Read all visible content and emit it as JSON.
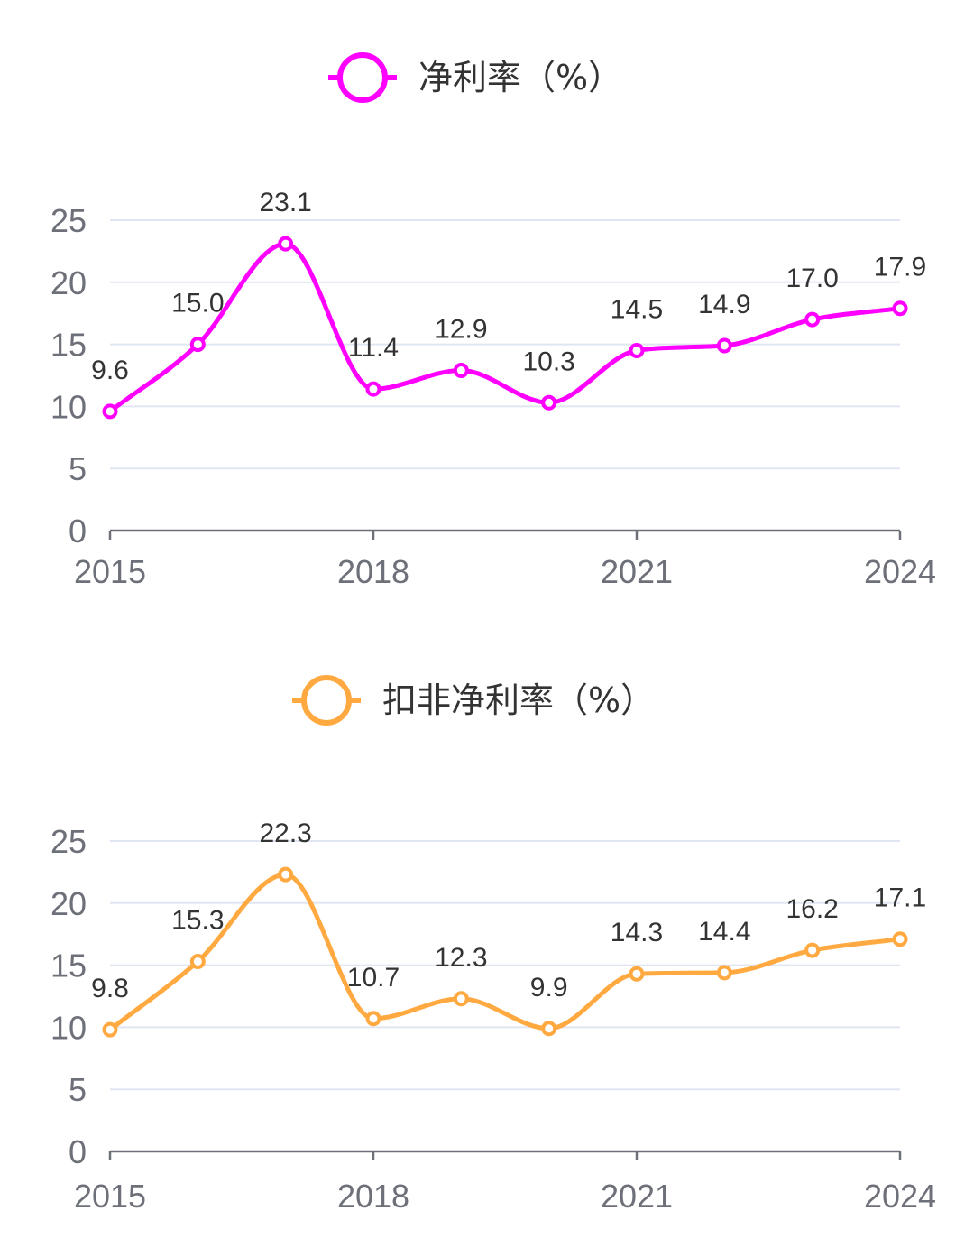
{
  "chart_data": [
    {
      "type": "line",
      "legend": "净利率（%）",
      "color": "#ff00ff",
      "x": [
        "2015",
        "2016",
        "2017",
        "2018",
        "2019",
        "2020",
        "2021",
        "2022",
        "2023",
        "2024"
      ],
      "values": [
        9.6,
        15.0,
        23.1,
        11.4,
        12.9,
        10.3,
        14.5,
        14.9,
        17.0,
        17.9
      ],
      "labels": [
        "9.6",
        "15.0",
        "23.1",
        "11.4",
        "12.9",
        "10.3",
        "14.5",
        "14.9",
        "17.0",
        "17.9"
      ],
      "x_tick_labels": [
        "2015",
        "2018",
        "2021",
        "2024"
      ],
      "y_ticks": [
        0,
        5,
        10,
        15,
        20,
        25
      ],
      "ylim": [
        0,
        25
      ],
      "grid": true,
      "legend_position": "top-center"
    },
    {
      "type": "line",
      "legend": "扣非净利率（%）",
      "color": "#ffa940",
      "x": [
        "2015",
        "2016",
        "2017",
        "2018",
        "2019",
        "2020",
        "2021",
        "2022",
        "2023",
        "2024"
      ],
      "values": [
        9.8,
        15.3,
        22.3,
        10.7,
        12.3,
        9.9,
        14.3,
        14.4,
        16.2,
        17.1
      ],
      "labels": [
        "9.8",
        "15.3",
        "22.3",
        "10.7",
        "12.3",
        "9.9",
        "14.3",
        "14.4",
        "16.2",
        "17.1"
      ],
      "x_tick_labels": [
        "2015",
        "2018",
        "2021",
        "2024"
      ],
      "y_ticks": [
        0,
        5,
        10,
        15,
        20,
        25
      ],
      "ylim": [
        0,
        25
      ],
      "grid": true,
      "legend_position": "top-center"
    }
  ]
}
